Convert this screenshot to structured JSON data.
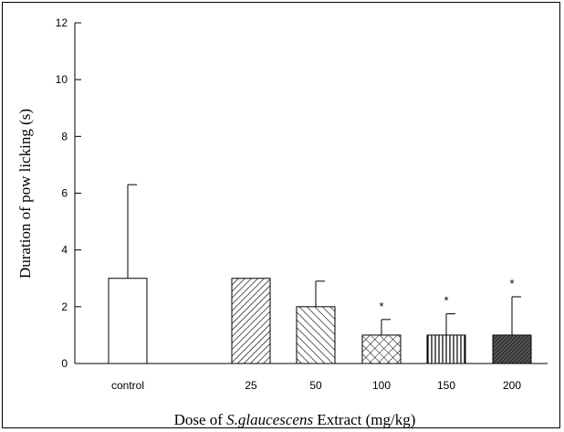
{
  "chart_data": {
    "type": "bar",
    "title": "",
    "xlabel": {
      "prefix": "Dose of ",
      "species": "S.glaucescens",
      "suffix": " Extract (mg/kg)"
    },
    "ylabel": "Duration of pow licking (s)",
    "ylim": [
      0,
      12
    ],
    "yticks": [
      0,
      2,
      4,
      6,
      8,
      10,
      12
    ],
    "categories": [
      "control",
      "25",
      "50",
      "100",
      "150",
      "200"
    ],
    "values": [
      3.0,
      3.0,
      2.0,
      1.0,
      1.0,
      1.0
    ],
    "error_upper": [
      3.3,
      0.0,
      0.9,
      0.55,
      0.75,
      1.35
    ],
    "significance": [
      "",
      "",
      "",
      "*",
      "*",
      "*"
    ],
    "patterns": [
      "none",
      "diagonal-right",
      "diagonal-left",
      "crosshatch",
      "vertical",
      "dense-dark"
    ],
    "grid": false
  }
}
